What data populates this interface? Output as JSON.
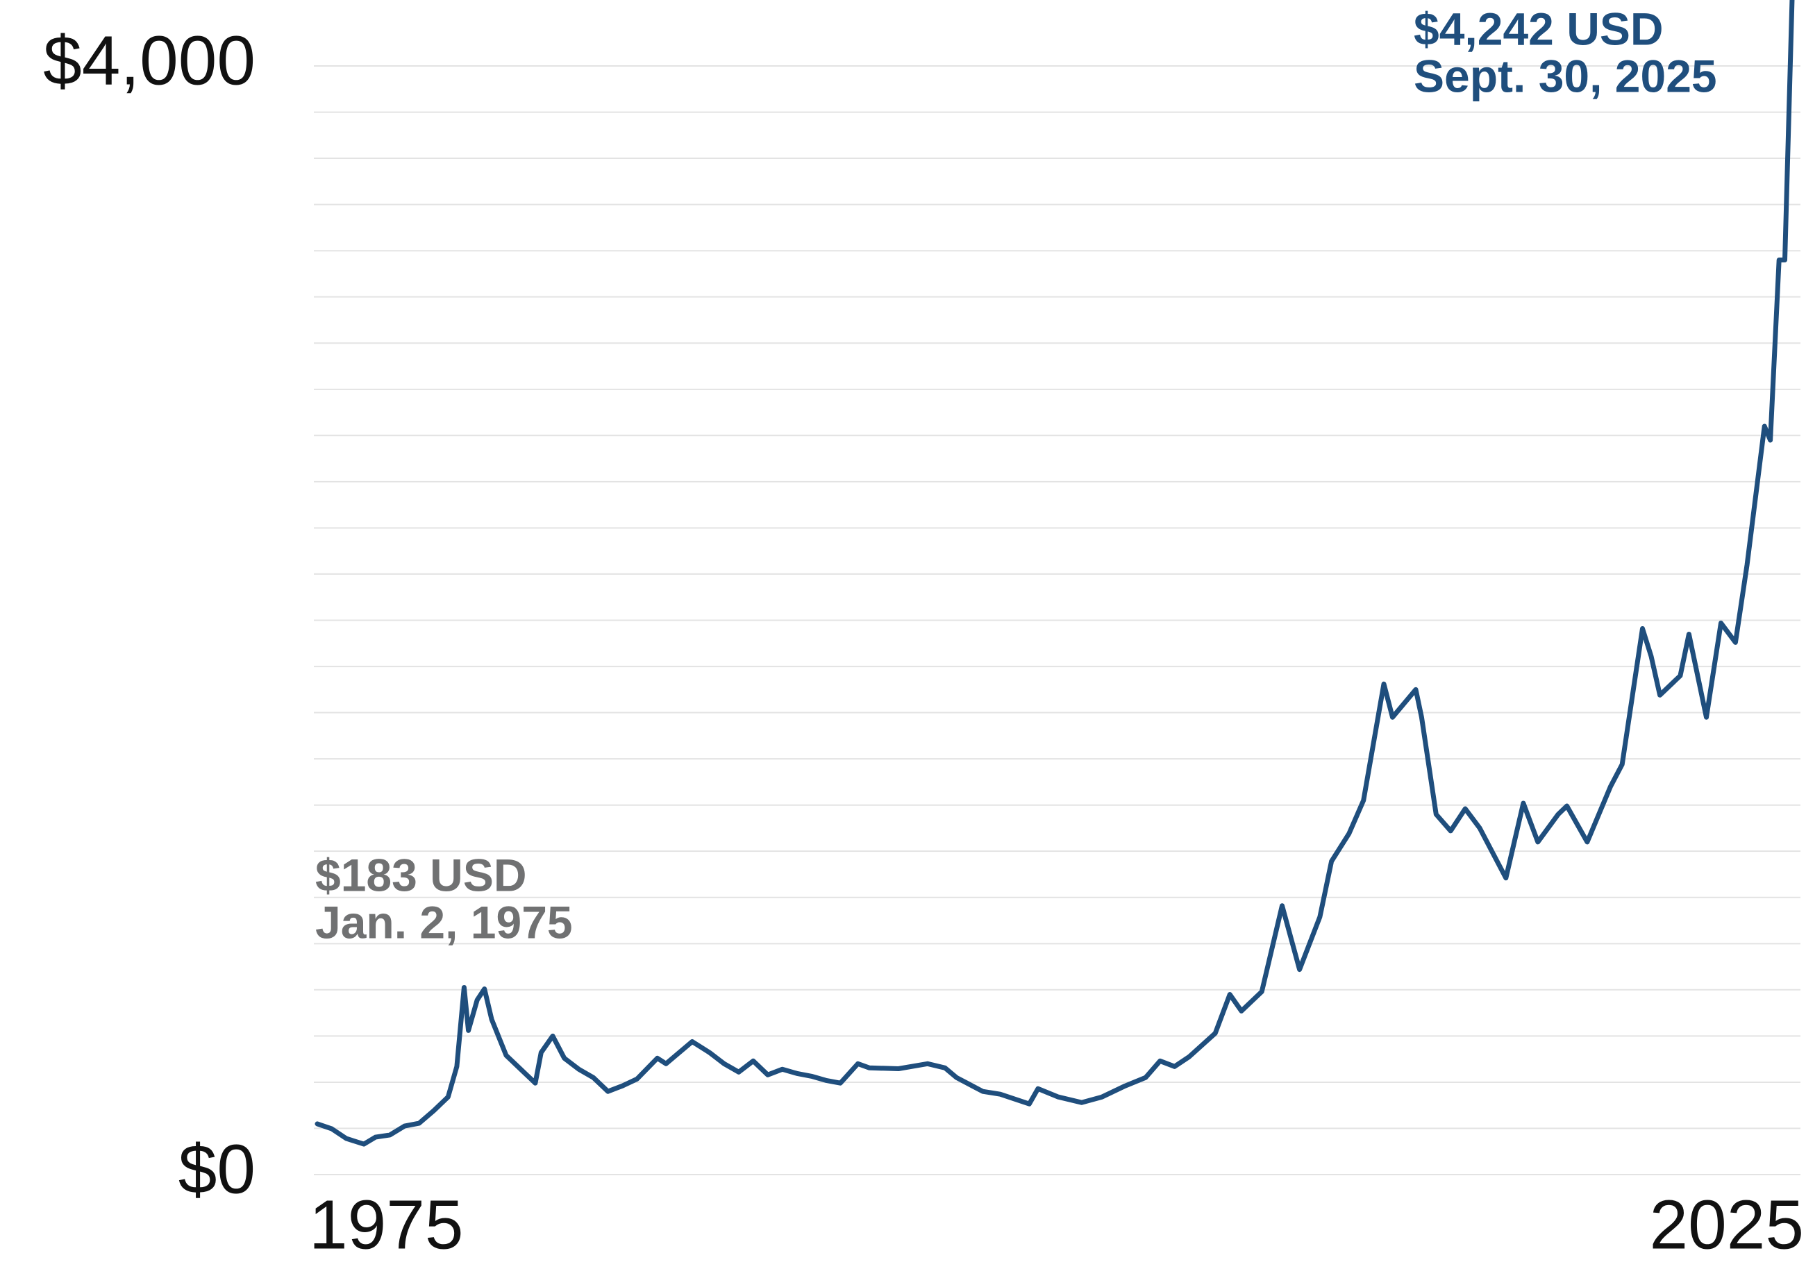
{
  "chart_data": {
    "type": "line",
    "xticks": [
      1975,
      2025
    ],
    "xlim": [
      1975,
      2025.75
    ],
    "yticks": [
      {
        "value": 0,
        "label": "$0"
      },
      {
        "value": 4000,
        "label": "$4,000"
      }
    ],
    "minor_yticks": [
      167,
      333,
      500,
      667,
      833,
      1000,
      1167,
      1333,
      1500,
      1667,
      1833,
      2000,
      2167,
      2333,
      2500,
      2667,
      2833,
      3000,
      3167,
      3333,
      3500,
      3667,
      3833
    ],
    "ylim": [
      0,
      4000
    ],
    "grid": true,
    "annotations": [
      {
        "text": "$183 USD",
        "date": "Jan. 2, 1975",
        "color": "#707172"
      },
      {
        "text": "$4,242 USD",
        "date": "Sept. 30, 2025",
        "color": "#1f4e7d"
      }
    ],
    "series": [
      {
        "color": "#1f4e7d",
        "x": [
          1975.0,
          1975.5,
          1976.0,
          1976.6,
          1977.0,
          1977.5,
          1978.0,
          1978.5,
          1979.0,
          1979.5,
          1979.8,
          1980.05,
          1980.2,
          1980.5,
          1980.75,
          1981.0,
          1981.5,
          1982.0,
          1982.5,
          1982.7,
          1983.1,
          1983.5,
          1984.0,
          1984.5,
          1985.0,
          1985.5,
          1986.0,
          1986.7,
          1987.0,
          1987.9,
          1988.5,
          1989.0,
          1989.5,
          1990.0,
          1990.5,
          1991.0,
          1991.5,
          1992.0,
          1992.5,
          1993.0,
          1993.6,
          1994.0,
          1995.0,
          1996.0,
          1996.6,
          1997.0,
          1997.9,
          1998.5,
          1999.5,
          1999.8,
          2000.5,
          2001.3,
          2002.0,
          2002.8,
          2003.5,
          2004.0,
          2004.5,
          2005.0,
          2005.9,
          2006.4,
          2006.8,
          2007.5,
          2008.2,
          2008.8,
          2009.5,
          2009.9,
          2010.5,
          2011.0,
          2011.7,
          2012.0,
          2012.8,
          2013.0,
          2013.5,
          2014.0,
          2014.5,
          2015.0,
          2015.9,
          2016.5,
          2017.0,
          2017.7,
          2018.0,
          2018.7,
          2019.5,
          2019.9,
          2020.6,
          2020.9,
          2021.2,
          2021.9,
          2022.2,
          2022.8,
          2023.3,
          2023.8,
          2024.2,
          2024.8,
          2025.0,
          2025.3,
          2025.5,
          2025.75
        ],
        "values": [
          183,
          165,
          130,
          110,
          135,
          143,
          175,
          185,
          230,
          280,
          390,
          675,
          520,
          630,
          670,
          560,
          430,
          380,
          330,
          440,
          500,
          420,
          380,
          350,
          300,
          320,
          345,
          420,
          400,
          480,
          440,
          400,
          370,
          410,
          360,
          380,
          365,
          355,
          340,
          330,
          400,
          385,
          382,
          400,
          385,
          350,
          300,
          290,
          255,
          310,
          280,
          260,
          280,
          320,
          350,
          410,
          390,
          425,
          510,
          650,
          590,
          660,
          970,
          740,
          930,
          1130,
          1230,
          1350,
          1770,
          1650,
          1750,
          1650,
          1300,
          1240,
          1320,
          1250,
          1070,
          1340,
          1200,
          1300,
          1330,
          1200,
          1400,
          1480,
          1970,
          1870,
          1730,
          1800,
          1950,
          1650,
          1990,
          1920,
          2200,
          2700,
          2650,
          3300,
          3300,
          4242
        ]
      }
    ]
  }
}
